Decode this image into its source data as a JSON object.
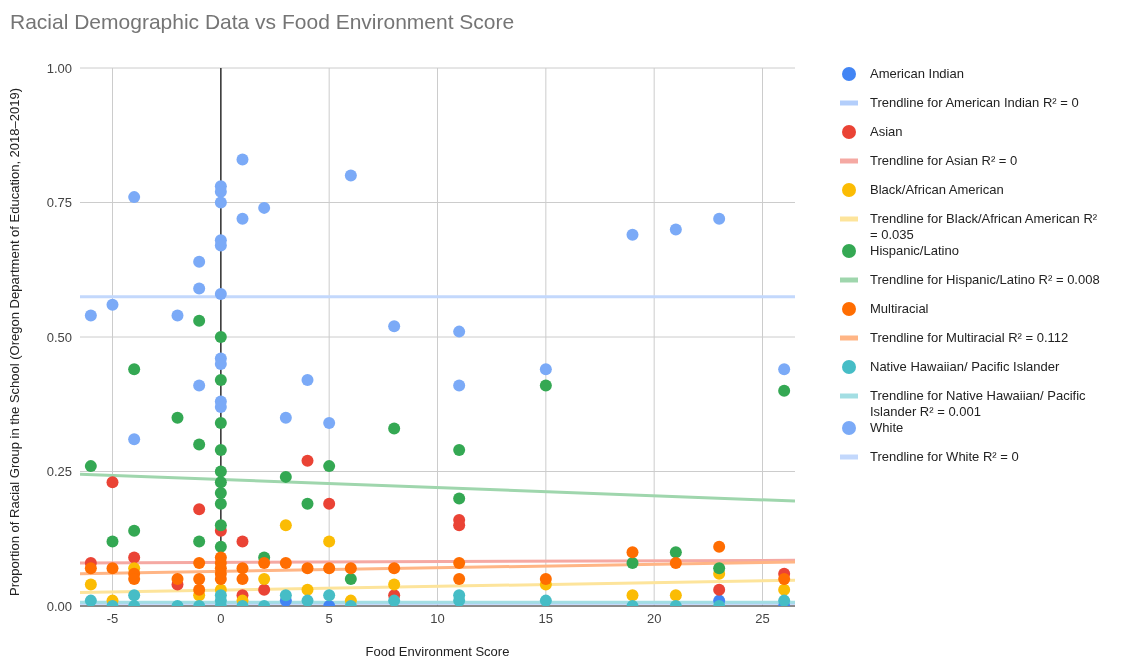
{
  "chart_data": {
    "type": "scatter",
    "title": "Racial Demographic Data vs Food Environment Score",
    "xlabel": "Food Environment Score",
    "ylabel": "Proportion of Racial Group in the School (Oregon Department of Education, 2018–2019)",
    "xlim": [
      -6.5,
      26.5
    ],
    "xticks": [
      -5,
      0,
      5,
      10,
      15,
      20,
      25
    ],
    "ylim": [
      0,
      1
    ],
    "yticks": [
      {
        "value": 0,
        "label": "0.00"
      },
      {
        "value": 0.25,
        "label": "0.25"
      },
      {
        "value": 0.5,
        "label": "0.50"
      },
      {
        "value": 0.75,
        "label": "0.75"
      },
      {
        "value": 1,
        "label": "1.00"
      }
    ],
    "grid": true,
    "legend": "right",
    "marker": "circle",
    "ref_lines": [
      {
        "axis": "x",
        "value": 0,
        "color": "#333333"
      }
    ],
    "series": [
      {
        "name": "American Indian",
        "color": "#4285f4",
        "x": [
          3,
          5,
          23,
          26
        ],
        "values": [
          0.01,
          0.0,
          0.01,
          0.0
        ]
      },
      {
        "name": "Trendline for American Indian  R² = 0",
        "type": "line",
        "marker": "none",
        "color": "#b3cefb",
        "x": [
          -6.5,
          26.5
        ],
        "values": [
          0.005,
          0.005
        ]
      },
      {
        "name": "Asian",
        "color": "#ea4335",
        "x": [
          -6,
          -5,
          -4,
          -2,
          -1,
          0,
          1,
          1,
          2,
          4,
          5,
          8,
          11,
          11,
          23,
          26
        ],
        "values": [
          0.08,
          0.23,
          0.09,
          0.04,
          0.18,
          0.14,
          0.12,
          0.02,
          0.03,
          0.27,
          0.19,
          0.02,
          0.16,
          0.15,
          0.03,
          0.06
        ]
      },
      {
        "name": "Trendline for Asian R² = 0",
        "type": "line",
        "marker": "none",
        "color": "#f5a9a3",
        "x": [
          -6.5,
          26.5
        ],
        "values": [
          0.08,
          0.085
        ]
      },
      {
        "name": "Black/African American",
        "color": "#fbbc04",
        "x": [
          -6,
          -5,
          -4,
          -1,
          0,
          1,
          2,
          3,
          4,
          5,
          6,
          8,
          15,
          19,
          21,
          23,
          26
        ],
        "values": [
          0.04,
          0.01,
          0.07,
          0.02,
          0.03,
          0.01,
          0.05,
          0.15,
          0.03,
          0.12,
          0.01,
          0.04,
          0.04,
          0.02,
          0.02,
          0.06,
          0.03
        ]
      },
      {
        "name": "Trendline for Black/African American R² = 0.035",
        "type": "line",
        "marker": "none",
        "color": "#fde49b",
        "x": [
          -6.5,
          26.5
        ],
        "values": [
          0.025,
          0.048
        ]
      },
      {
        "name": "Hispanic/Latino",
        "color": "#34a853",
        "x": [
          -6,
          -5,
          -4,
          -4,
          -2,
          -1,
          -1,
          -1,
          0,
          0,
          0,
          0,
          0,
          0,
          0,
          0,
          0,
          0,
          2,
          3,
          4,
          5,
          6,
          8,
          11,
          11,
          15,
          19,
          21,
          23,
          26
        ],
        "values": [
          0.26,
          0.12,
          0.44,
          0.14,
          0.35,
          0.53,
          0.3,
          0.12,
          0.5,
          0.42,
          0.34,
          0.29,
          0.25,
          0.23,
          0.21,
          0.19,
          0.15,
          0.11,
          0.09,
          0.24,
          0.19,
          0.26,
          0.05,
          0.33,
          0.29,
          0.2,
          0.41,
          0.08,
          0.1,
          0.07,
          0.4
        ]
      },
      {
        "name": "Trendline for Hispanic/Latino  R² = 0.008",
        "type": "line",
        "marker": "none",
        "color": "#9fd6ad",
        "x": [
          -6.5,
          26.5
        ],
        "values": [
          0.245,
          0.195
        ]
      },
      {
        "name": "Multiracial",
        "color": "#ff6d01",
        "x": [
          -6,
          -5,
          -4,
          -4,
          -2,
          -1,
          -1,
          -1,
          0,
          0,
          0,
          0,
          0,
          1,
          1,
          2,
          3,
          4,
          5,
          6,
          8,
          11,
          11,
          15,
          19,
          21,
          23,
          26
        ],
        "values": [
          0.07,
          0.07,
          0.06,
          0.05,
          0.05,
          0.08,
          0.05,
          0.03,
          0.09,
          0.08,
          0.07,
          0.06,
          0.05,
          0.07,
          0.05,
          0.08,
          0.08,
          0.07,
          0.07,
          0.07,
          0.07,
          0.08,
          0.05,
          0.05,
          0.1,
          0.08,
          0.11,
          0.05
        ]
      },
      {
        "name": "Trendline for Multiracial R² = 0.112",
        "type": "line",
        "marker": "none",
        "color": "#ffb585",
        "x": [
          -6.5,
          26.5
        ],
        "values": [
          0.06,
          0.082
        ]
      },
      {
        "name": "Native Hawaiian/ Pacific Islander",
        "color": "#46bdc6",
        "x": [
          -6,
          -5,
          -4,
          -4,
          -2,
          -1,
          0,
          0,
          0,
          1,
          2,
          3,
          4,
          5,
          6,
          8,
          11,
          11,
          15,
          19,
          21,
          23,
          26
        ],
        "values": [
          0.01,
          0.0,
          0.02,
          0.0,
          0.0,
          0.0,
          0.02,
          0.01,
          0.0,
          0.0,
          0.0,
          0.02,
          0.01,
          0.02,
          0.0,
          0.01,
          0.02,
          0.01,
          0.01,
          0.0,
          0.0,
          0.0,
          0.01
        ]
      },
      {
        "name": "Trendline for Native Hawaiian/ Pacific Islander R² = 0.001",
        "type": "line",
        "marker": "none",
        "color": "#a3dee3",
        "x": [
          -6.5,
          26.5
        ],
        "values": [
          0.007,
          0.007
        ]
      },
      {
        "name": "White",
        "color": "#7baaf7",
        "x": [
          -6,
          -5,
          -4,
          -4,
          -2,
          -1,
          -1,
          -1,
          0,
          0,
          0,
          0,
          0,
          0,
          0,
          0,
          0,
          0,
          1,
          1,
          2,
          3,
          4,
          5,
          6,
          8,
          11,
          11,
          15,
          19,
          21,
          23,
          26
        ],
        "values": [
          0.54,
          0.56,
          0.76,
          0.31,
          0.54,
          0.64,
          0.59,
          0.41,
          0.78,
          0.77,
          0.75,
          0.68,
          0.67,
          0.58,
          0.46,
          0.45,
          0.38,
          0.37,
          0.83,
          0.72,
          0.74,
          0.35,
          0.42,
          0.34,
          0.8,
          0.52,
          0.51,
          0.41,
          0.44,
          0.69,
          0.7,
          0.72,
          0.44
        ]
      },
      {
        "name": "Trendline for White R² = 0",
        "type": "line",
        "marker": "none",
        "color": "#c3d8fc",
        "x": [
          -6.5,
          26.5
        ],
        "values": [
          0.575,
          0.575
        ]
      }
    ]
  }
}
